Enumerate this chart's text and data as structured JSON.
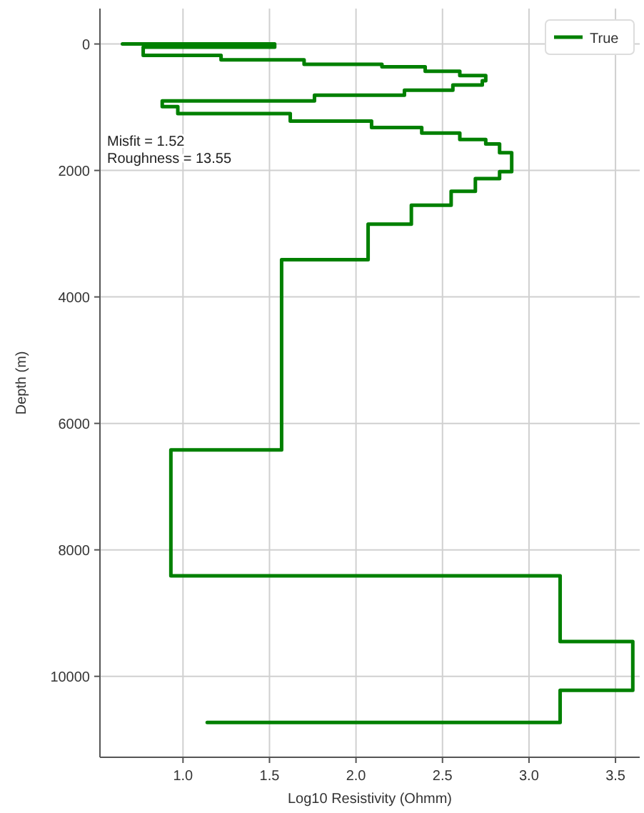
{
  "chart_data": {
    "type": "line",
    "xlabel": "Log10 Resistivity (Ohmm)",
    "ylabel": "Depth (m)",
    "xlim": [
      0.52,
      3.64
    ],
    "ylim": [
      11280,
      -560
    ],
    "xticks": [
      {
        "value": 1,
        "label": "1.0"
      },
      {
        "value": 1.5,
        "label": "1.5"
      },
      {
        "value": 2,
        "label": "2.0"
      },
      {
        "value": 2.5,
        "label": "2.5"
      },
      {
        "value": 3,
        "label": "3.0"
      },
      {
        "value": 3.5,
        "label": "3.5"
      }
    ],
    "yticks": [
      0,
      2000,
      4000,
      6000,
      8000,
      10000
    ],
    "grid": true,
    "legend": "top right",
    "line_style": "solid",
    "marker": "none",
    "annotations": [
      "Misfit = 1.52",
      "Roughness = 13.55"
    ],
    "series": [
      {
        "name": "True",
        "color": "#008000",
        "x": [
          0.65,
          1.53,
          1.53,
          0.77,
          0.77,
          1.22,
          1.22,
          1.7,
          1.7,
          2.15,
          2.15,
          2.4,
          2.4,
          2.6,
          2.6,
          2.75,
          2.75,
          2.73,
          2.73,
          2.56,
          2.56,
          2.28,
          2.28,
          1.76,
          1.76,
          0.88,
          0.88,
          0.97,
          0.97,
          1.62,
          1.62,
          2.09,
          2.09,
          2.38,
          2.38,
          2.6,
          2.6,
          2.75,
          2.75,
          2.83,
          2.83,
          2.9,
          2.9,
          2.83,
          2.83,
          2.69,
          2.69,
          2.55,
          2.55,
          2.32,
          2.32,
          2.07,
          2.07,
          1.57,
          1.57,
          0.93,
          0.93,
          3.18,
          3.18,
          3.6,
          3.6,
          3.18,
          3.18,
          1.14
        ],
        "values": [
          0,
          0,
          50,
          50,
          180,
          180,
          250,
          250,
          320,
          320,
          360,
          360,
          430,
          430,
          500,
          500,
          580,
          580,
          650,
          650,
          730,
          730,
          810,
          810,
          900,
          900,
          990,
          990,
          1100,
          1100,
          1220,
          1220,
          1320,
          1320,
          1410,
          1410,
          1510,
          1510,
          1580,
          1580,
          1720,
          1720,
          2020,
          2020,
          2130,
          2130,
          2330,
          2330,
          2550,
          2550,
          2850,
          2850,
          3410,
          3410,
          6420,
          6420,
          8410,
          8410,
          9450,
          9450,
          10220,
          10220,
          10730,
          10730
        ]
      }
    ]
  }
}
